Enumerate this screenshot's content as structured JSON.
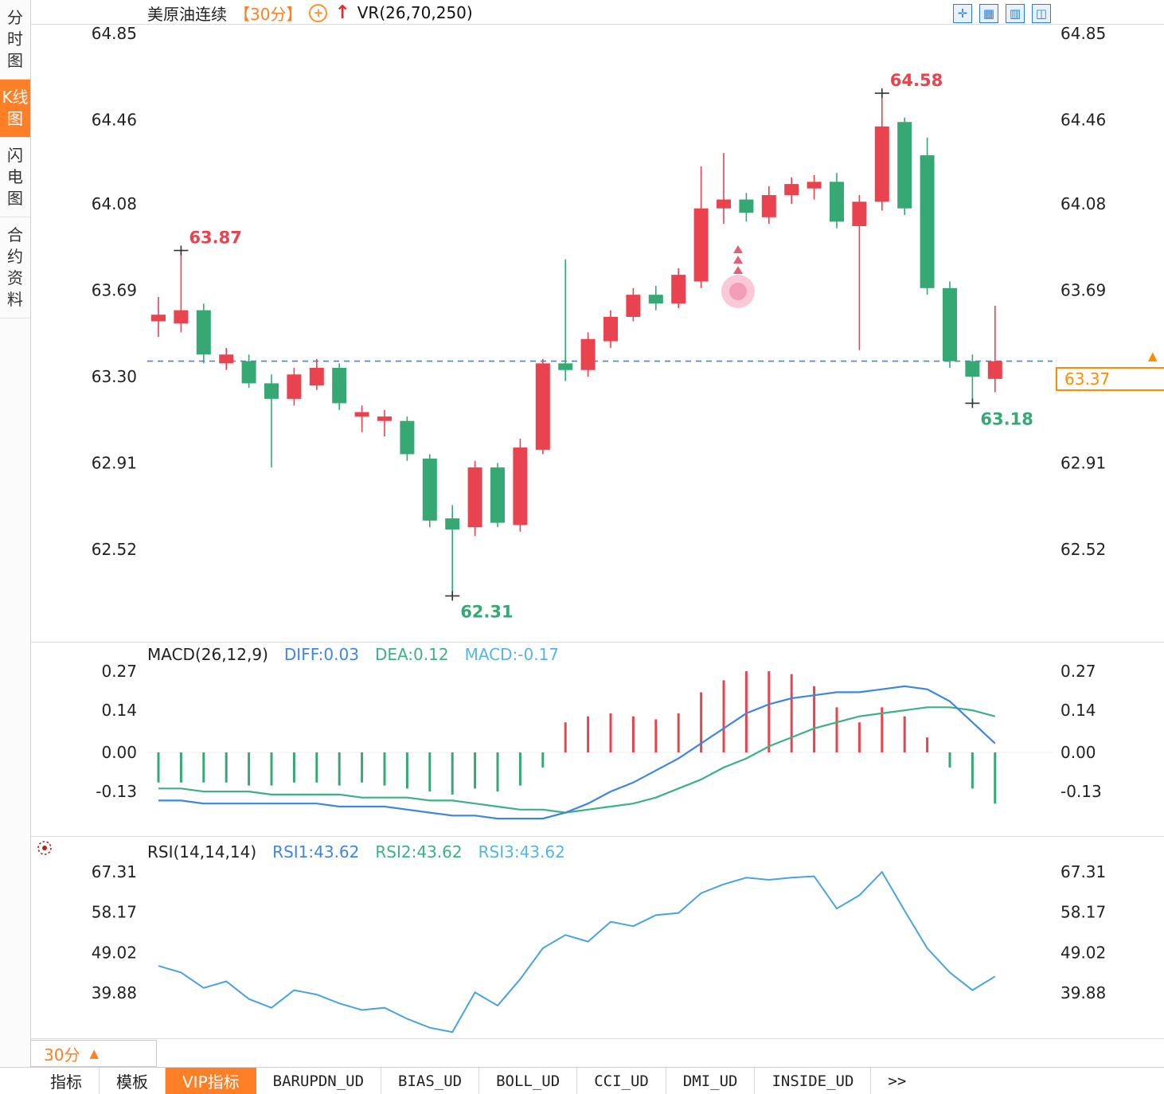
{
  "colors": {
    "up": "#e8434e",
    "down": "#35a873",
    "accent_orange": "#ff7f27",
    "blue_line": "#3f86e0",
    "green_line": "#3cb183",
    "rsi_line": "#4aa3e0",
    "light_blue": "#55b5e8",
    "marker_pink": "#f0789a",
    "dashed_line": "#3f86e0"
  },
  "sidebar": {
    "tabs": [
      {
        "label": "分时图",
        "active": false
      },
      {
        "label": "K线图",
        "active": true
      },
      {
        "label": "闪电图",
        "active": false
      },
      {
        "label": "合约资料",
        "active": false
      }
    ]
  },
  "header": {
    "title": "美原油连续",
    "period": "【30分】",
    "add_glyph": "+",
    "arrow_glyph": "↑",
    "indicator": "VR(26,70,250)"
  },
  "toolbar": {
    "icons": [
      {
        "name": "crosshair-icon",
        "glyph": "✛"
      },
      {
        "name": "grid-chart-icon",
        "glyph": "▦"
      },
      {
        "name": "bar-chart-icon",
        "glyph": "▥"
      },
      {
        "name": "panels-icon",
        "glyph": "◫"
      }
    ]
  },
  "price_marker": {
    "arrow": "▲"
  },
  "bottom": {
    "period_label": "30分",
    "period_arrow": "▲",
    "tabs": [
      {
        "label": "指标",
        "active": false,
        "mono": false
      },
      {
        "label": "模板",
        "active": false,
        "mono": false
      },
      {
        "label": "VIP指标",
        "active": true,
        "mono": false
      },
      {
        "label": "BARUPDN_UD",
        "active": false,
        "mono": true
      },
      {
        "label": "BIAS_UD",
        "active": false,
        "mono": true
      },
      {
        "label": "BOLL_UD",
        "active": false,
        "mono": true
      },
      {
        "label": "CCI_UD",
        "active": false,
        "mono": true
      },
      {
        "label": "DMI_UD",
        "active": false,
        "mono": true
      },
      {
        "label": "INSIDE_UD",
        "active": false,
        "mono": true
      },
      {
        "label": ">>",
        "active": false,
        "mono": true
      }
    ]
  },
  "chart_data": [
    {
      "type": "candlestick",
      "symbol": "美原油连续",
      "interval": "30分",
      "y_ticks": [
        "64.85",
        "64.46",
        "64.08",
        "63.69",
        "63.30",
        "62.91",
        "62.52"
      ],
      "ylim": [
        62.25,
        64.92
      ],
      "candles": [
        [
          63.55,
          63.66,
          63.48,
          63.58
        ],
        [
          63.54,
          63.87,
          63.5,
          63.6
        ],
        [
          63.6,
          63.63,
          63.36,
          63.4
        ],
        [
          63.36,
          63.43,
          63.33,
          63.4
        ],
        [
          63.37,
          63.4,
          63.25,
          63.27
        ],
        [
          63.27,
          63.31,
          62.89,
          63.2
        ],
        [
          63.2,
          63.34,
          63.17,
          63.31
        ],
        [
          63.26,
          63.38,
          63.24,
          63.34
        ],
        [
          63.34,
          63.36,
          63.15,
          63.18
        ],
        [
          63.12,
          63.17,
          63.05,
          63.14
        ],
        [
          63.1,
          63.15,
          63.03,
          63.12
        ],
        [
          63.1,
          63.12,
          62.92,
          62.95
        ],
        [
          62.93,
          62.95,
          62.62,
          62.65
        ],
        [
          62.66,
          62.72,
          62.31,
          62.61
        ],
        [
          62.62,
          62.92,
          62.58,
          62.89
        ],
        [
          62.89,
          62.91,
          62.62,
          62.64
        ],
        [
          62.63,
          63.02,
          62.6,
          62.98
        ],
        [
          62.97,
          63.38,
          62.95,
          63.36
        ],
        [
          63.36,
          63.83,
          63.28,
          63.33
        ],
        [
          63.33,
          63.5,
          63.3,
          63.47
        ],
        [
          63.46,
          63.6,
          63.43,
          63.57
        ],
        [
          63.57,
          63.7,
          63.55,
          63.67
        ],
        [
          63.67,
          63.71,
          63.6,
          63.63
        ],
        [
          63.63,
          63.79,
          63.61,
          63.76
        ],
        [
          63.73,
          64.25,
          63.7,
          64.06
        ],
        [
          64.06,
          64.31,
          63.99,
          64.1
        ],
        [
          64.1,
          64.13,
          64.0,
          64.04
        ],
        [
          64.02,
          64.16,
          63.99,
          64.12
        ],
        [
          64.12,
          64.2,
          64.08,
          64.17
        ],
        [
          64.15,
          64.21,
          64.1,
          64.18
        ],
        [
          64.18,
          64.22,
          63.97,
          64.0
        ],
        [
          63.98,
          64.12,
          63.42,
          64.09
        ],
        [
          64.09,
          64.58,
          64.05,
          64.43
        ],
        [
          64.45,
          64.47,
          64.03,
          64.06
        ],
        [
          64.3,
          64.38,
          63.67,
          63.7
        ],
        [
          63.7,
          63.73,
          63.34,
          63.37
        ],
        [
          63.37,
          63.4,
          63.18,
          63.3
        ],
        [
          63.29,
          63.62,
          63.23,
          63.37
        ]
      ],
      "markers": [
        {
          "index": 1,
          "price": 63.87,
          "label": "63.87",
          "side": "high"
        },
        {
          "index": 32,
          "price": 64.58,
          "label": "64.58",
          "side": "high"
        },
        {
          "index": 13,
          "price": 62.31,
          "label": "62.31",
          "side": "low"
        },
        {
          "index": 36,
          "price": 63.18,
          "label": "63.18",
          "side": "low"
        }
      ],
      "signal": {
        "index": 25
      },
      "annotations": {
        "last_price": {
          "value": 63.37,
          "label": "63.37"
        }
      }
    },
    {
      "type": "macd",
      "label": "MACD(26,12,9)",
      "diff_label": "DIFF:0.03",
      "dea_label": "DEA:0.12",
      "macd_label": "MACD:-0.17",
      "y_ticks": [
        "0.27",
        "0.14",
        "0.00",
        "-0.13"
      ],
      "hist": [
        -0.1,
        -0.1,
        -0.1,
        -0.1,
        -0.11,
        -0.11,
        -0.1,
        -0.1,
        -0.11,
        -0.1,
        -0.11,
        -0.12,
        -0.13,
        -0.14,
        -0.12,
        -0.13,
        -0.11,
        -0.05,
        0.1,
        0.12,
        0.13,
        0.12,
        0.11,
        0.13,
        0.2,
        0.24,
        0.27,
        0.27,
        0.26,
        0.22,
        0.15,
        0.1,
        0.15,
        0.12,
        0.05,
        -0.05,
        -0.12,
        -0.17
      ],
      "diff": [
        -0.16,
        -0.16,
        -0.17,
        -0.17,
        -0.17,
        -0.17,
        -0.17,
        -0.17,
        -0.18,
        -0.18,
        -0.18,
        -0.19,
        -0.2,
        -0.21,
        -0.21,
        -0.22,
        -0.22,
        -0.22,
        -0.2,
        -0.17,
        -0.13,
        -0.1,
        -0.06,
        -0.02,
        0.03,
        0.08,
        0.13,
        0.16,
        0.18,
        0.19,
        0.2,
        0.2,
        0.21,
        0.22,
        0.21,
        0.17,
        0.1,
        0.03
      ],
      "dea": [
        -0.12,
        -0.12,
        -0.13,
        -0.13,
        -0.13,
        -0.14,
        -0.14,
        -0.14,
        -0.14,
        -0.15,
        -0.15,
        -0.15,
        -0.16,
        -0.16,
        -0.17,
        -0.18,
        -0.19,
        -0.19,
        -0.2,
        -0.19,
        -0.18,
        -0.17,
        -0.15,
        -0.12,
        -0.09,
        -0.05,
        -0.02,
        0.02,
        0.05,
        0.08,
        0.1,
        0.12,
        0.13,
        0.14,
        0.15,
        0.15,
        0.14,
        0.12
      ]
    },
    {
      "type": "line",
      "label": "RSI(14,14,14)",
      "rsi1_label": "RSI1:43.62",
      "rsi2_label": "RSI2:43.62",
      "rsi3_label": "RSI3:43.62",
      "y_ticks": [
        "67.31",
        "58.17",
        "49.02",
        "39.88"
      ],
      "values": [
        46,
        44.5,
        41,
        42.5,
        38.5,
        36.5,
        40.5,
        39.5,
        37.5,
        36,
        36.5,
        34,
        32,
        31,
        40,
        37,
        43,
        50,
        53,
        51.5,
        56,
        55,
        57.5,
        58,
        62.5,
        64.5,
        66,
        65.5,
        66,
        66.3,
        59,
        62,
        67.3,
        58.5,
        50,
        44.5,
        40.5,
        43.62
      ]
    }
  ]
}
